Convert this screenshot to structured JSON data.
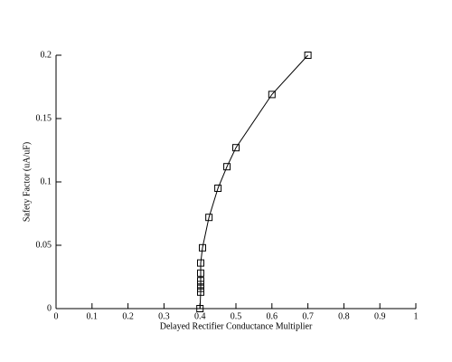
{
  "chart_data": {
    "type": "line",
    "x_label": "Delayed Rectifier Conductance Multiplier",
    "y_label": "Safety Factor (uA/uF)",
    "x": [
      0.7,
      0.6,
      0.5,
      0.475,
      0.45,
      0.425,
      0.407,
      0.402,
      0.402,
      0.402,
      0.402,
      0.402,
      0.402,
      0.4
    ],
    "values": [
      0.2,
      0.169,
      0.127,
      0.112,
      0.095,
      0.072,
      0.048,
      0.036,
      0.028,
      0.022,
      0.019,
      0.016,
      0.013,
      0
    ],
    "color": "#000000",
    "xlim": [
      0,
      1
    ],
    "xticks": [
      0,
      0.1,
      0.2,
      0.3,
      0.4,
      0.5,
      0.6,
      0.7,
      0.8,
      0.9,
      1
    ],
    "ylim": [
      0,
      0.2
    ],
    "yticks": [
      0,
      0.05,
      0.1,
      0.15,
      0.2
    ]
  }
}
